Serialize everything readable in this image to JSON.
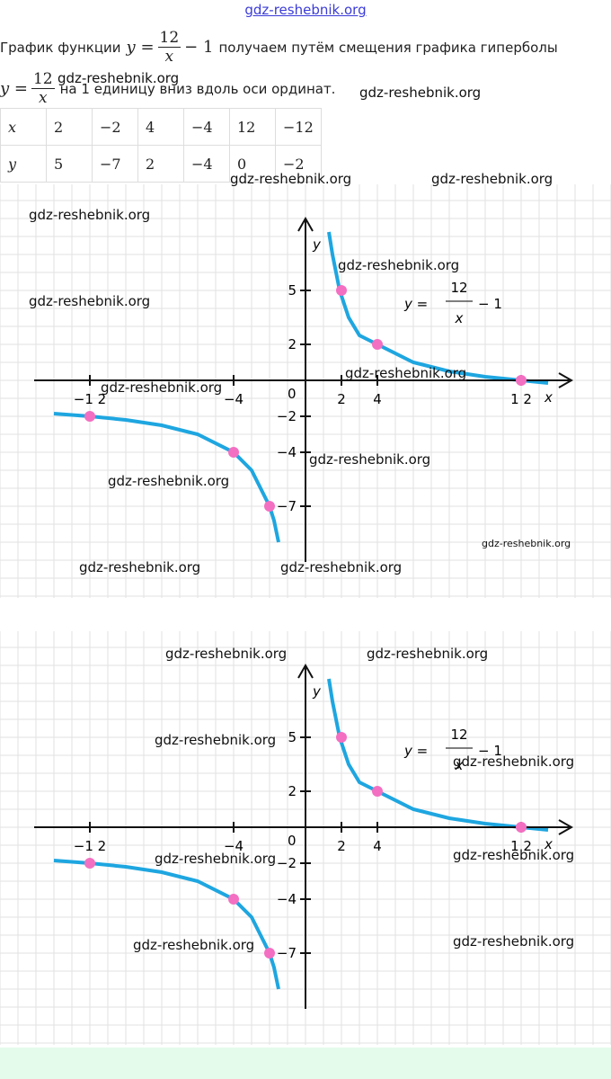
{
  "header": {
    "site": "gdz-reshebnik.org"
  },
  "watermark": "gdz-reshebnik.org",
  "intro": {
    "part1": "График функции",
    "formula1": {
      "lhs": "y =",
      "num": "12",
      "den": "x",
      "rest": "− 1"
    },
    "part2": "получаем путём смещения графика гиперболы",
    "formula2": {
      "lhs": "y =",
      "num": "12",
      "den": "x"
    },
    "part3": "на 1 единицу вниз вдоль оси ординат."
  },
  "table": {
    "rows": [
      [
        "x",
        "2",
        "−2",
        "4",
        "−4",
        "12",
        "−12"
      ],
      [
        "y",
        "5",
        "−7",
        "2",
        "−4",
        "0",
        "−2"
      ]
    ]
  },
  "graphs": [
    {
      "x_label": "x",
      "y_label": "y",
      "origin_label": "0",
      "formula": {
        "lhs": "y =",
        "num": "12",
        "den": "x",
        "rest": "− 1"
      },
      "xticks": [
        {
          "value": -12,
          "label": "−1 2"
        },
        {
          "value": -4,
          "label": "−4"
        },
        2,
        4,
        {
          "value": 12,
          "label": "1 2"
        }
      ],
      "yticks": [
        5,
        2,
        {
          "value": -2,
          "label": "−2"
        },
        {
          "value": -4,
          "label": "−4"
        },
        {
          "value": -7,
          "label": "−7"
        }
      ],
      "points": {
        "x": [
          -12,
          -4,
          -2,
          2,
          4,
          12
        ],
        "y": [
          -2,
          -4,
          -7,
          5,
          2,
          0
        ]
      },
      "curve_color": "#1ea6e0",
      "point_color": "#f36fc1"
    },
    {
      "x_label": "x",
      "y_label": "y",
      "origin_label": "0",
      "formula": {
        "lhs": "y =",
        "num": "12",
        "den": "x",
        "rest": "− 1"
      },
      "xticks": [
        {
          "value": -12,
          "label": "−1 2"
        },
        {
          "value": -4,
          "label": "−4"
        },
        2,
        4,
        {
          "value": 12,
          "label": "1 2"
        }
      ],
      "yticks": [
        5,
        2,
        {
          "value": -2,
          "label": "−2"
        },
        {
          "value": -4,
          "label": "−4"
        },
        {
          "value": -7,
          "label": "−7"
        }
      ],
      "points": {
        "x": [
          -12,
          -4,
          -2,
          2,
          4,
          12
        ],
        "y": [
          -2,
          -4,
          -7,
          5,
          2,
          0
        ]
      },
      "curve_color": "#1ea6e0",
      "point_color": "#f36fc1"
    }
  ]
}
